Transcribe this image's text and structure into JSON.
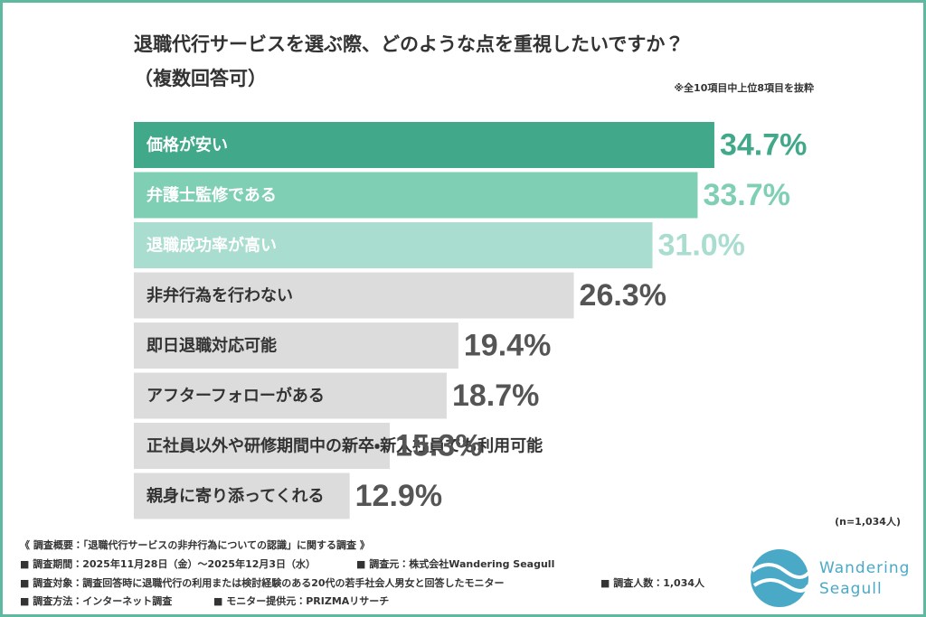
{
  "chart_data": {
    "type": "hbar",
    "title": "退職代行サービスを選ぶ際、どのような点を重視したいですか？",
    "subtitle": "（複数回答可）",
    "note": "※全10項目中上位8項目を抜粋",
    "sample": "(n=1,034人)",
    "categories": [
      "価格が安い",
      "弁護士監修である",
      "退職成功率が高い",
      "非弁行為を行わない",
      "即日退職対応可能",
      "アフターフォローがある",
      "正社員以外や研修期間中の新卒・新入社員でも利用可能",
      "親身に寄り添ってくれる"
    ],
    "values": [
      34.7,
      33.7,
      31.0,
      26.3,
      19.4,
      18.7,
      15.3,
      12.9
    ],
    "value_labels": [
      "34.7%",
      "33.7%",
      "31.0%",
      "26.3%",
      "19.4%",
      "18.7%",
      "15.3%",
      "12.9%"
    ],
    "colors": [
      "#41a98a",
      "#7fcfb5",
      "#a9ddcf",
      "#dcdcdc",
      "#dcdcdc",
      "#dcdcdc",
      "#dcdcdc",
      "#dcdcdc"
    ],
    "label_colors": [
      "#41a98a",
      "#7fcfb5",
      "#a9ddcf",
      "#555555",
      "#555555",
      "#555555",
      "#555555",
      "#555555"
    ],
    "text_colors": [
      "#ffffff",
      "#ffffff",
      "#ffffff",
      "#333333",
      "#333333",
      "#333333",
      "#333333",
      "#333333"
    ]
  },
  "footer": {
    "heading": "《 調査概要：「退職代行サービスの非弁行為についての認識」に関する調査 》",
    "lines": [
      [
        "■ 調査期間：2025年11月28日（金）～2025年12月3日（水）",
        "■ 調査元：株式会社Wandering Seagull"
      ],
      [
        "■ 調査対象：調査回答時に退職代行の利用または検討経験のある20代の若手社会人男女と回答したモニター",
        "■ 調査人数：1,034人"
      ],
      [
        "■ 調査方法：インターネット調査",
        "■ モニター提供元：PRIZMAリサーチ"
      ]
    ]
  },
  "logo": {
    "line1": "Wandering",
    "line2": "Seagull"
  }
}
